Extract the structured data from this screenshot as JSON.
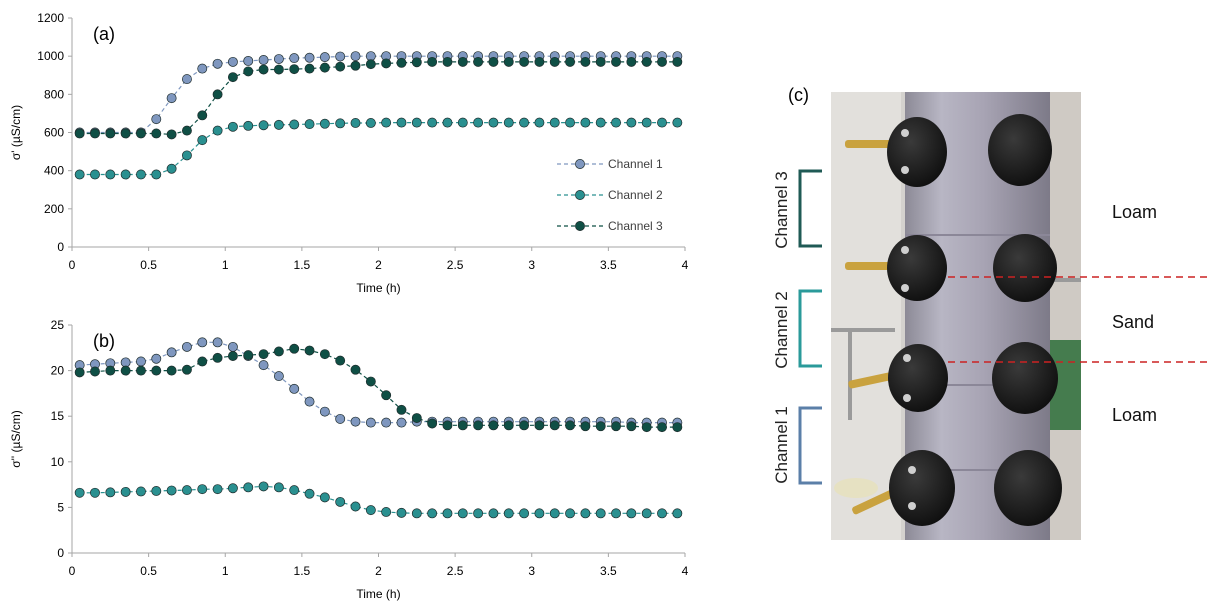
{
  "chart_data": [
    {
      "type": "line",
      "panel": "(a)",
      "xlabel": "Time (h)",
      "ylabel": "σ' (µS/cm)",
      "xlim": [
        0,
        4
      ],
      "ylim": [
        0,
        1200
      ],
      "xticks": [
        0,
        0.5,
        1,
        1.5,
        2,
        2.5,
        3,
        3.5,
        4
      ],
      "xtick_labels": [
        "0",
        "0.5",
        "1",
        "1.5",
        "2",
        "2.5",
        "3",
        "3.5",
        "4"
      ],
      "yticks": [
        0,
        200,
        400,
        600,
        800,
        1000,
        1200
      ],
      "ytick_labels": [
        "0",
        "200",
        "400",
        "600",
        "800",
        "1000",
        "1200"
      ],
      "grid": false,
      "legend": "right",
      "x": [
        0.05,
        0.15,
        0.25,
        0.35,
        0.45,
        0.55,
        0.65,
        0.75,
        0.85,
        0.95,
        1.05,
        1.15,
        1.25,
        1.35,
        1.45,
        1.55,
        1.65,
        1.75,
        1.85,
        1.95,
        2.05,
        2.15,
        2.25,
        2.35,
        2.45,
        2.55,
        2.65,
        2.75,
        2.85,
        2.95,
        3.05,
        3.15,
        3.25,
        3.35,
        3.45,
        3.55,
        3.65,
        3.75,
        3.85,
        3.95
      ],
      "series": [
        {
          "name": "Channel 1",
          "color": "#7f97bf",
          "values": [
            600,
            600,
            600,
            600,
            600,
            670,
            780,
            880,
            935,
            960,
            970,
            975,
            980,
            985,
            990,
            992,
            995,
            998,
            1000,
            1000,
            1000,
            1000,
            1000,
            1000,
            1000,
            1000,
            1000,
            1000,
            1000,
            1000,
            1000,
            1000,
            1000,
            1000,
            1000,
            1000,
            1000,
            1000,
            1000,
            1000
          ]
        },
        {
          "name": "Channel 2",
          "color": "#2a9090",
          "values": [
            380,
            380,
            380,
            380,
            380,
            380,
            410,
            480,
            560,
            610,
            630,
            635,
            638,
            640,
            642,
            644,
            646,
            648,
            650,
            650,
            652,
            652,
            652,
            652,
            652,
            652,
            652,
            652,
            652,
            652,
            652,
            652,
            652,
            652,
            652,
            652,
            652,
            652,
            652,
            652
          ]
        },
        {
          "name": "Channel 3",
          "color": "#0f4f45",
          "values": [
            595,
            595,
            595,
            595,
            595,
            595,
            590,
            610,
            690,
            800,
            890,
            920,
            930,
            930,
            932,
            935,
            940,
            945,
            950,
            958,
            962,
            965,
            968,
            970,
            970,
            970,
            970,
            970,
            970,
            970,
            970,
            970,
            970,
            970,
            970,
            970,
            970,
            970,
            970,
            970
          ]
        }
      ]
    },
    {
      "type": "line",
      "panel": "(b)",
      "xlabel": "Time (h)",
      "ylabel": "σ'' (µS/cm)",
      "xlim": [
        0,
        4
      ],
      "ylim": [
        0,
        25
      ],
      "xticks": [
        0,
        0.5,
        1,
        1.5,
        2,
        2.5,
        3,
        3.5,
        4
      ],
      "xtick_labels": [
        "0",
        "0.5",
        "1",
        "1.5",
        "2",
        "2.5",
        "3",
        "3.5",
        "4"
      ],
      "yticks": [
        0,
        5,
        10,
        15,
        20,
        25
      ],
      "ytick_labels": [
        "0",
        "5",
        "10",
        "15",
        "20",
        "25"
      ],
      "grid": false,
      "x": [
        0.05,
        0.15,
        0.25,
        0.35,
        0.45,
        0.55,
        0.65,
        0.75,
        0.85,
        0.95,
        1.05,
        1.15,
        1.25,
        1.35,
        1.45,
        1.55,
        1.65,
        1.75,
        1.85,
        1.95,
        2.05,
        2.15,
        2.25,
        2.35,
        2.45,
        2.55,
        2.65,
        2.75,
        2.85,
        2.95,
        3.05,
        3.15,
        3.25,
        3.35,
        3.45,
        3.55,
        3.65,
        3.75,
        3.85,
        3.95
      ],
      "series": [
        {
          "name": "Channel 1",
          "color": "#7f97bf",
          "values": [
            20.6,
            20.7,
            20.8,
            20.9,
            21.0,
            21.3,
            22.0,
            22.6,
            23.1,
            23.1,
            22.6,
            21.6,
            20.6,
            19.4,
            18.0,
            16.6,
            15.5,
            14.7,
            14.4,
            14.3,
            14.3,
            14.3,
            14.4,
            14.4,
            14.4,
            14.4,
            14.4,
            14.4,
            14.4,
            14.4,
            14.4,
            14.4,
            14.4,
            14.4,
            14.4,
            14.4,
            14.3,
            14.3,
            14.3,
            14.3
          ]
        },
        {
          "name": "Channel 2",
          "color": "#2a9090",
          "values": [
            6.6,
            6.6,
            6.65,
            6.7,
            6.75,
            6.8,
            6.85,
            6.9,
            7.0,
            7.0,
            7.1,
            7.2,
            7.3,
            7.2,
            6.9,
            6.5,
            6.1,
            5.6,
            5.1,
            4.7,
            4.5,
            4.4,
            4.35,
            4.35,
            4.35,
            4.35,
            4.35,
            4.35,
            4.35,
            4.35,
            4.35,
            4.35,
            4.35,
            4.35,
            4.35,
            4.35,
            4.35,
            4.35,
            4.35,
            4.35
          ]
        },
        {
          "name": "Channel 3",
          "color": "#0f4f45",
          "values": [
            19.8,
            19.9,
            20.0,
            20.0,
            20.0,
            20.0,
            20.0,
            20.1,
            21.0,
            21.4,
            21.6,
            21.7,
            21.8,
            22.1,
            22.4,
            22.2,
            21.8,
            21.1,
            20.1,
            18.8,
            17.3,
            15.7,
            14.8,
            14.2,
            14.0,
            14.0,
            14.0,
            14.0,
            14.0,
            14.0,
            14.0,
            14.0,
            14.0,
            13.9,
            13.9,
            13.9,
            13.9,
            13.8,
            13.8,
            13.8
          ]
        }
      ]
    }
  ],
  "photo": {
    "panel": "(c)",
    "channels": [
      "Channel 3",
      "Channel 2",
      "Channel 1"
    ],
    "channel_colors": [
      "#1f5a55",
      "#2a9a9a",
      "#5b7fa8"
    ],
    "layers": [
      "Loam",
      "Sand",
      "Loam"
    ],
    "boundary_color": "#cc2222"
  }
}
